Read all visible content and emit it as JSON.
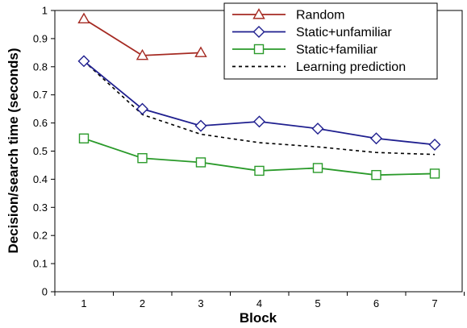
{
  "chart_data": {
    "type": "line",
    "xlabel": "Block",
    "ylabel": "Decision/search time (seconds)",
    "categories": [
      "1",
      "2",
      "3",
      "4",
      "5",
      "6",
      "7"
    ],
    "ylim": [
      0,
      1
    ],
    "yticks": [
      "0",
      "0.1",
      "0.2",
      "0.3",
      "0.4",
      "0.5",
      "0.6",
      "0.7",
      "0.8",
      "0.9",
      "1"
    ],
    "grid": false,
    "legend": "top-right",
    "series": [
      {
        "name": "Random",
        "values": [
          0.97,
          0.84,
          0.85,
          null,
          null,
          null,
          null
        ],
        "color": "#a52a22",
        "marker": "triangle"
      },
      {
        "name": "Static+unfamiliar",
        "values": [
          0.82,
          0.65,
          0.59,
          0.605,
          0.58,
          0.545,
          0.523
        ],
        "color": "#1f1f8f",
        "marker": "diamond"
      },
      {
        "name": "Static+familiar",
        "values": [
          0.545,
          0.475,
          0.46,
          0.43,
          0.44,
          0.415,
          0.42
        ],
        "color": "#2a9a2a",
        "marker": "square"
      },
      {
        "name": "Learning prediction",
        "values": [
          0.82,
          0.63,
          0.56,
          0.53,
          0.515,
          0.495,
          0.488
        ],
        "color": "#000000",
        "marker": "none",
        "dashed": true
      }
    ]
  }
}
